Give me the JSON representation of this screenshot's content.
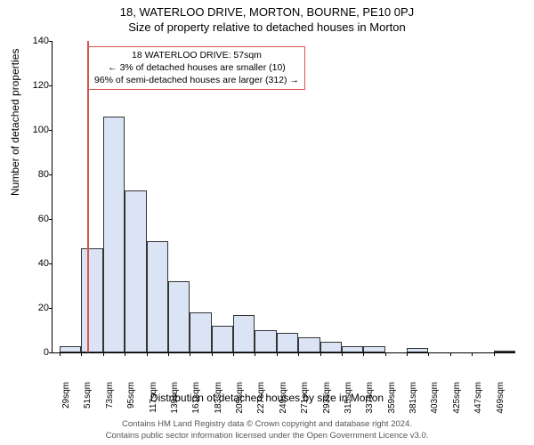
{
  "title_line1": "18, WATERLOO DRIVE, MORTON, BOURNE, PE10 0PJ",
  "title_line2": "Size of property relative to detached houses in Morton",
  "chart": {
    "type": "histogram",
    "ylabel": "Number of detached properties",
    "xlabel": "Distribution of detached houses by size in Morton",
    "ylim": [
      0,
      140
    ],
    "ytick_step": 20,
    "bar_fill": "#dbe4f5",
    "bar_border": "#333333",
    "marker_color": "#d9534f",
    "marker_x_sqm": 57,
    "x_start": 29,
    "x_step": 22,
    "x_suffix": "sqm",
    "values": [
      3,
      47,
      106,
      73,
      50,
      32,
      18,
      12,
      17,
      10,
      9,
      7,
      5,
      3,
      3,
      0,
      2,
      0,
      0,
      0,
      1
    ]
  },
  "annotation": {
    "line1": "18 WATERLOO DRIVE: 57sqm",
    "line2": "← 3% of detached houses are smaller (10)",
    "line3": "96% of semi-detached houses are larger (312) →"
  },
  "footer_line1": "Contains HM Land Registry data © Crown copyright and database right 2024.",
  "footer_line2": "Contains public sector information licensed under the Open Government Licence v3.0."
}
